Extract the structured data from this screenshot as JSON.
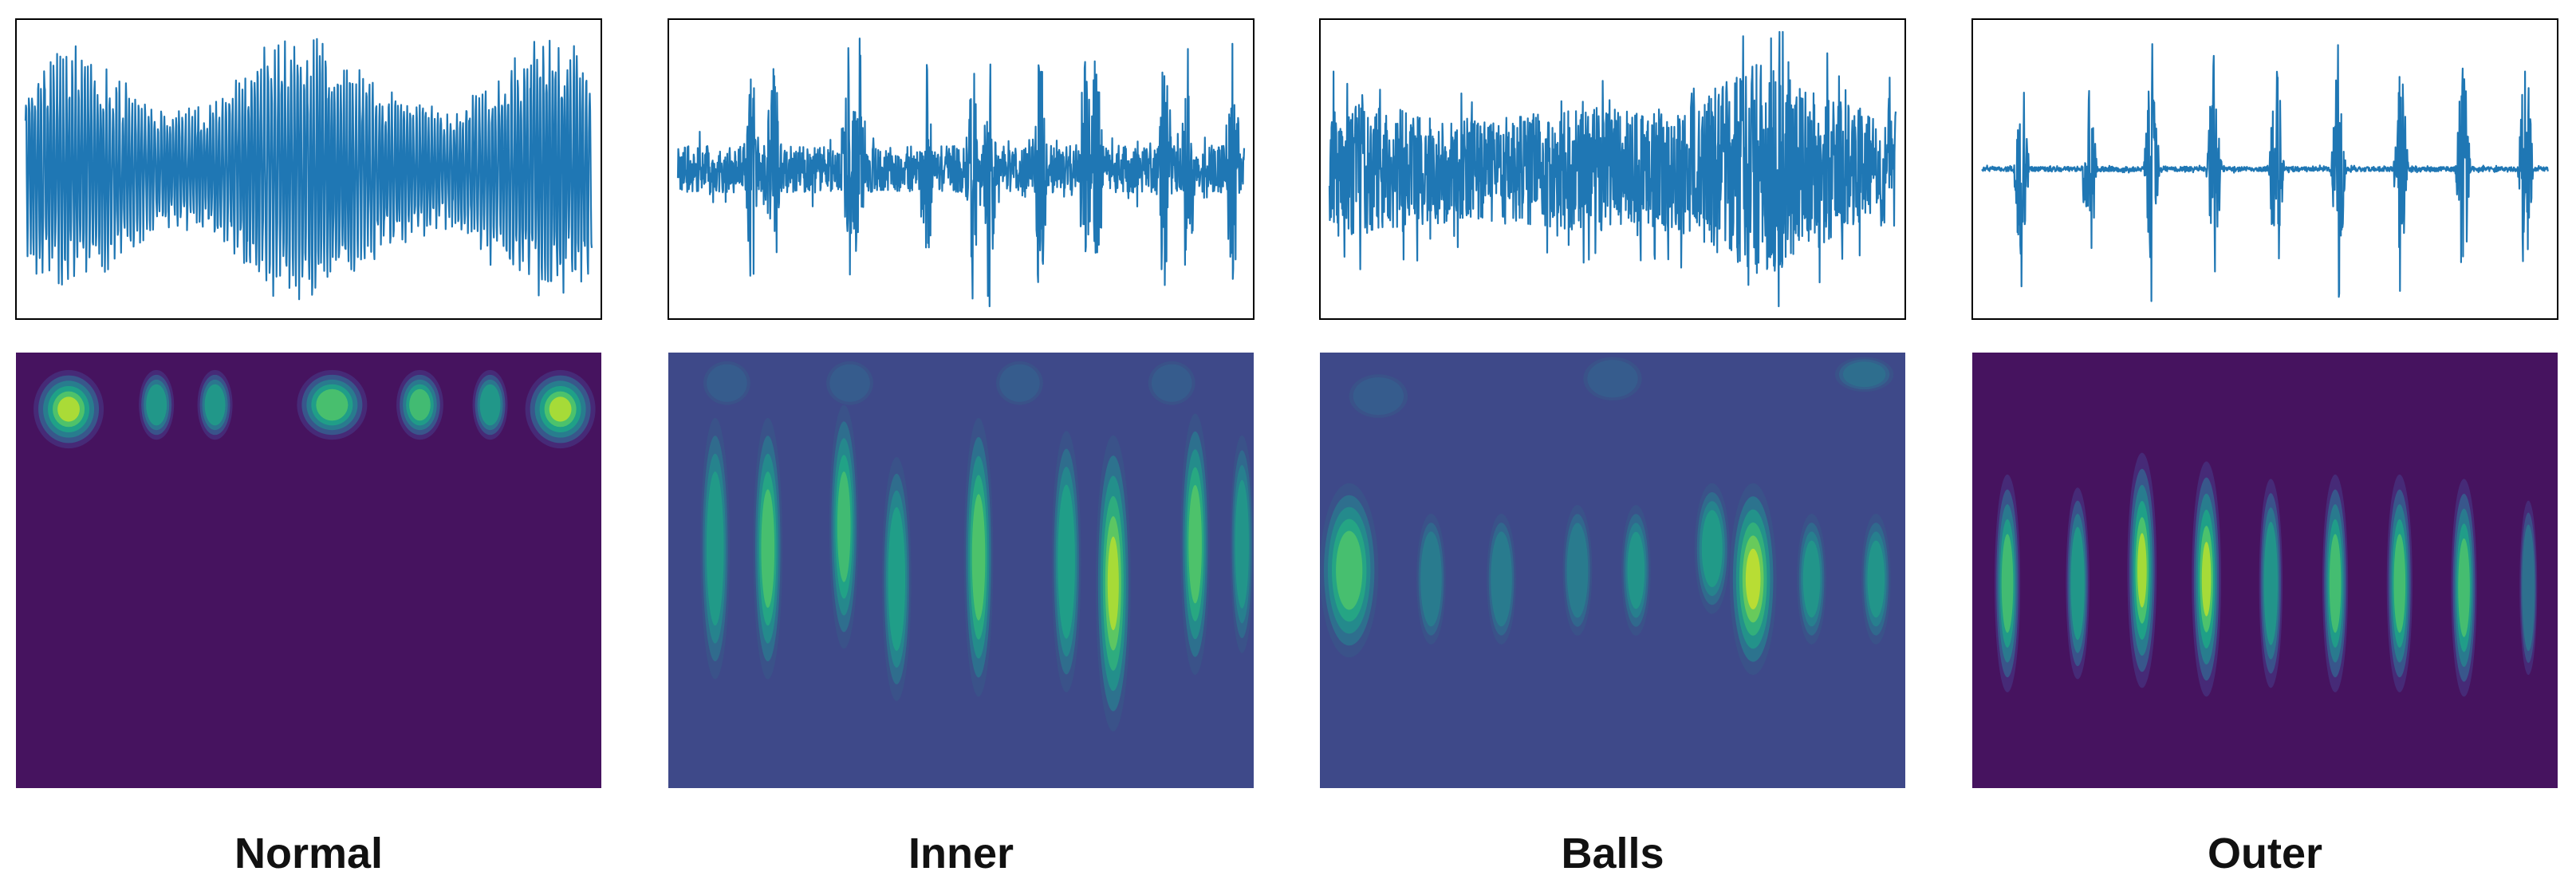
{
  "chart_data": [
    {
      "type": "line",
      "panel": "Normal",
      "title": "",
      "xlabel": "",
      "ylabel": "",
      "axes_ticks": false,
      "line_color": "#1f77b4",
      "signal": {
        "pattern": "dense oscillation with ~3 high-amplitude bursts",
        "amplitude_envelope": [
          0.75,
          0.95,
          0.7,
          0.45,
          0.5,
          0.95,
          1.0,
          0.8,
          0.55,
          0.45,
          0.75,
          1.0,
          0.9
        ],
        "impulses": [],
        "noise_level": 0.3,
        "range": [
          -1,
          1
        ]
      },
      "scalogram": {
        "type": "heatmap",
        "colormap": "viridis",
        "background": "#46135f",
        "blobs": [
          {
            "x": 0.09,
            "y": 0.13,
            "width": 0.06,
            "height": 0.09,
            "intensity": 0.92
          },
          {
            "x": 0.24,
            "y": 0.12,
            "width": 0.03,
            "height": 0.08,
            "intensity": 0.55
          },
          {
            "x": 0.34,
            "y": 0.12,
            "width": 0.03,
            "height": 0.08,
            "intensity": 0.55
          },
          {
            "x": 0.54,
            "y": 0.12,
            "width": 0.06,
            "height": 0.08,
            "intensity": 0.78
          },
          {
            "x": 0.69,
            "y": 0.12,
            "width": 0.04,
            "height": 0.08,
            "intensity": 0.66
          },
          {
            "x": 0.81,
            "y": 0.12,
            "width": 0.03,
            "height": 0.08,
            "intensity": 0.55
          },
          {
            "x": 0.93,
            "y": 0.13,
            "width": 0.06,
            "height": 0.09,
            "intensity": 0.88
          }
        ]
      }
    },
    {
      "type": "line",
      "panel": "Inner",
      "title": "",
      "xlabel": "",
      "ylabel": "",
      "axes_ticks": false,
      "line_color": "#1f77b4",
      "signal": {
        "pattern": "noise with periodic sharp impulses",
        "amplitude_envelope": [
          0.35,
          0.35,
          0.35,
          0.35,
          0.35,
          0.35,
          0.35,
          0.35
        ],
        "impulses": [
          0.13,
          0.17,
          0.3,
          0.32,
          0.44,
          0.52,
          0.55,
          0.64,
          0.72,
          0.74,
          0.86,
          0.9,
          0.98
        ],
        "noise_level": 0.35,
        "range": [
          -1,
          1
        ]
      },
      "scalogram": {
        "type": "heatmap",
        "colormap": "viridis",
        "background": "#3e4989",
        "blobs": [
          {
            "x": 0.08,
            "y": 0.45,
            "width": 0.025,
            "height": 0.3,
            "intensity": 0.55
          },
          {
            "x": 0.17,
            "y": 0.45,
            "width": 0.025,
            "height": 0.3,
            "intensity": 0.7
          },
          {
            "x": 0.3,
            "y": 0.4,
            "width": 0.025,
            "height": 0.28,
            "intensity": 0.65
          },
          {
            "x": 0.39,
            "y": 0.52,
            "width": 0.025,
            "height": 0.28,
            "intensity": 0.6
          },
          {
            "x": 0.53,
            "y": 0.47,
            "width": 0.025,
            "height": 0.32,
            "intensity": 0.75
          },
          {
            "x": 0.68,
            "y": 0.48,
            "width": 0.025,
            "height": 0.3,
            "intensity": 0.6
          },
          {
            "x": 0.76,
            "y": 0.53,
            "width": 0.03,
            "height": 0.34,
            "intensity": 0.85
          },
          {
            "x": 0.9,
            "y": 0.44,
            "width": 0.025,
            "height": 0.3,
            "intensity": 0.75
          },
          {
            "x": 0.98,
            "y": 0.44,
            "width": 0.02,
            "height": 0.25,
            "intensity": 0.5
          },
          {
            "x": 0.1,
            "y": 0.07,
            "width": 0.04,
            "height": 0.05,
            "intensity": 0.3
          },
          {
            "x": 0.31,
            "y": 0.07,
            "width": 0.04,
            "height": 0.05,
            "intensity": 0.3
          },
          {
            "x": 0.6,
            "y": 0.07,
            "width": 0.04,
            "height": 0.05,
            "intensity": 0.3
          },
          {
            "x": 0.86,
            "y": 0.07,
            "width": 0.04,
            "height": 0.05,
            "intensity": 0.3
          }
        ]
      }
    },
    {
      "type": "line",
      "panel": "Balls",
      "title": "",
      "xlabel": "",
      "ylabel": "",
      "axes_ticks": false,
      "line_color": "#1f77b4",
      "signal": {
        "pattern": "dense broadband noise with amplitude modulation",
        "amplitude_envelope": [
          0.6,
          0.55,
          0.5,
          0.45,
          0.45,
          0.5,
          0.55,
          0.5,
          0.55,
          0.75,
          0.95,
          0.7,
          0.55,
          0.5
        ],
        "impulses": [],
        "noise_level": 0.6,
        "range": [
          -1,
          1
        ]
      },
      "scalogram": {
        "type": "heatmap",
        "colormap": "viridis",
        "background": "#3e4989",
        "blobs": [
          {
            "x": 0.05,
            "y": 0.5,
            "width": 0.05,
            "height": 0.2,
            "intensity": 0.7
          },
          {
            "x": 0.19,
            "y": 0.52,
            "width": 0.025,
            "height": 0.15,
            "intensity": 0.45
          },
          {
            "x": 0.31,
            "y": 0.52,
            "width": 0.025,
            "height": 0.15,
            "intensity": 0.45
          },
          {
            "x": 0.44,
            "y": 0.5,
            "width": 0.025,
            "height": 0.15,
            "intensity": 0.45
          },
          {
            "x": 0.54,
            "y": 0.5,
            "width": 0.025,
            "height": 0.15,
            "intensity": 0.5
          },
          {
            "x": 0.67,
            "y": 0.45,
            "width": 0.03,
            "height": 0.15,
            "intensity": 0.55
          },
          {
            "x": 0.74,
            "y": 0.52,
            "width": 0.04,
            "height": 0.22,
            "intensity": 0.95
          },
          {
            "x": 0.84,
            "y": 0.52,
            "width": 0.025,
            "height": 0.15,
            "intensity": 0.5
          },
          {
            "x": 0.95,
            "y": 0.52,
            "width": 0.025,
            "height": 0.15,
            "intensity": 0.5
          },
          {
            "x": 0.1,
            "y": 0.1,
            "width": 0.05,
            "height": 0.05,
            "intensity": 0.3
          },
          {
            "x": 0.5,
            "y": 0.06,
            "width": 0.05,
            "height": 0.05,
            "intensity": 0.3
          },
          {
            "x": 0.93,
            "y": 0.05,
            "width": 0.05,
            "height": 0.04,
            "intensity": 0.35
          }
        ]
      }
    },
    {
      "type": "line",
      "panel": "Outer",
      "title": "",
      "xlabel": "",
      "ylabel": "",
      "axes_ticks": false,
      "line_color": "#1f77b4",
      "signal": {
        "pattern": "low-level noise with ~9 evenly spaced large impulses",
        "amplitude_envelope": [
          0.12,
          0.12,
          0.12,
          0.12,
          0.12,
          0.12,
          0.12,
          0.12
        ],
        "impulses": [
          0.07,
          0.19,
          0.3,
          0.41,
          0.52,
          0.63,
          0.74,
          0.85,
          0.96
        ],
        "noise_level": 0.1,
        "range": [
          -1,
          1
        ]
      },
      "scalogram": {
        "type": "heatmap",
        "colormap": "viridis",
        "background": "#46135f",
        "blobs": [
          {
            "x": 0.06,
            "y": 0.53,
            "width": 0.022,
            "height": 0.25,
            "intensity": 0.65
          },
          {
            "x": 0.18,
            "y": 0.53,
            "width": 0.02,
            "height": 0.22,
            "intensity": 0.55
          },
          {
            "x": 0.29,
            "y": 0.5,
            "width": 0.025,
            "height": 0.27,
            "intensity": 0.85
          },
          {
            "x": 0.4,
            "y": 0.52,
            "width": 0.025,
            "height": 0.27,
            "intensity": 0.88
          },
          {
            "x": 0.51,
            "y": 0.53,
            "width": 0.02,
            "height": 0.24,
            "intensity": 0.5
          },
          {
            "x": 0.62,
            "y": 0.53,
            "width": 0.022,
            "height": 0.25,
            "intensity": 0.7
          },
          {
            "x": 0.73,
            "y": 0.53,
            "width": 0.022,
            "height": 0.25,
            "intensity": 0.72
          },
          {
            "x": 0.84,
            "y": 0.54,
            "width": 0.022,
            "height": 0.25,
            "intensity": 0.72
          },
          {
            "x": 0.95,
            "y": 0.54,
            "width": 0.015,
            "height": 0.2,
            "intensity": 0.4
          }
        ]
      }
    }
  ],
  "captions": [
    "Normal",
    "Inner",
    "Balls",
    "Outer"
  ]
}
